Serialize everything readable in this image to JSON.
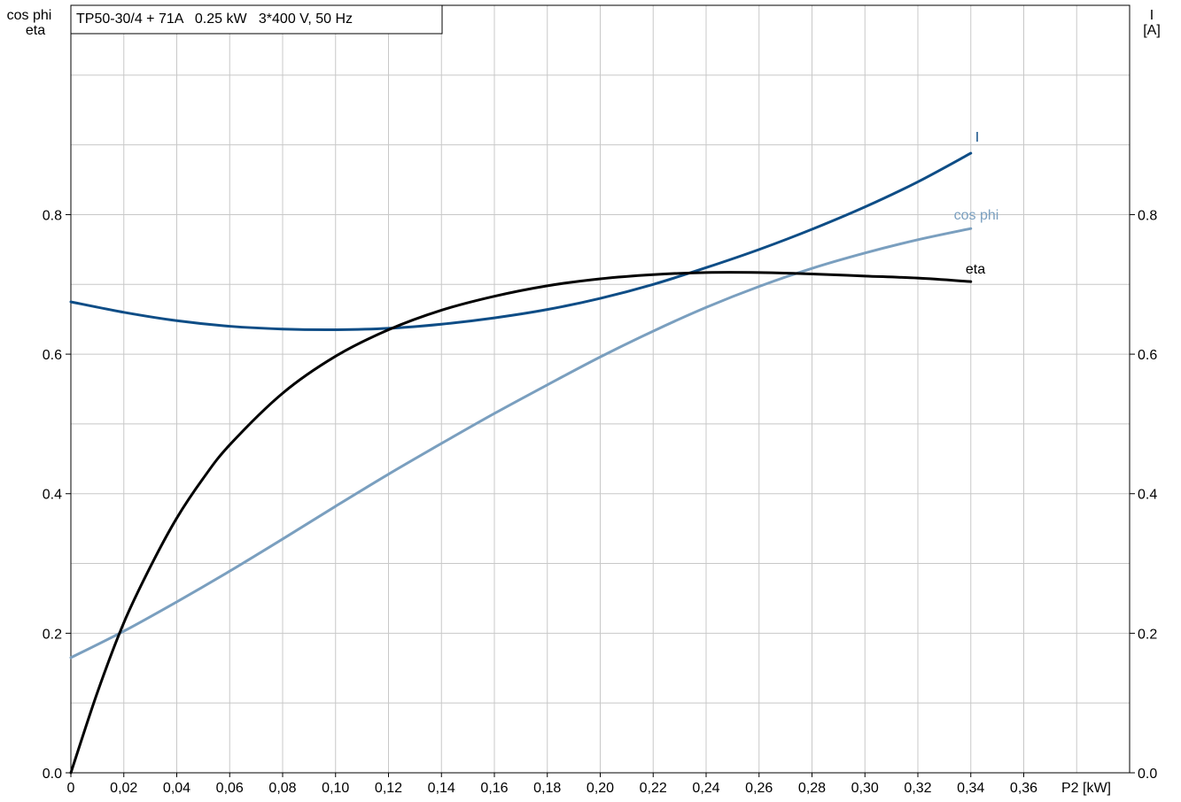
{
  "title_box": "TP50-30/4 + 71A   0.25 kW   3*400 V, 50 Hz",
  "y_left_label": [
    "cos phi",
    "eta"
  ],
  "y_right_label": [
    "I",
    "[A]"
  ],
  "x_unit_label": "P2 [kW]",
  "chart_data": {
    "type": "line",
    "x_ticks": [
      "0",
      "0,02",
      "0,04",
      "0,06",
      "0,08",
      "0,10",
      "0,12",
      "0,14",
      "0,16",
      "0,18",
      "0,20",
      "0,22",
      "0,24",
      "0,26",
      "0,28",
      "0,30",
      "0,32",
      "0,34",
      "0,36"
    ],
    "xlim": [
      0,
      0.4
    ],
    "y_left": {
      "ticks": [
        "0.0",
        "0.2",
        "0.4",
        "0.6",
        "0.8"
      ],
      "ylim": [
        0,
        1.1
      ]
    },
    "y_right": {
      "ticks": [
        "0.0",
        "0.2",
        "0.4",
        "0.6",
        "0.8"
      ],
      "ylim": [
        0,
        1.1
      ]
    },
    "grid": true,
    "series": [
      {
        "name": "I",
        "axis": "right",
        "color": "#0e4d86",
        "x": [
          0,
          0.02,
          0.04,
          0.06,
          0.08,
          0.1,
          0.12,
          0.14,
          0.16,
          0.18,
          0.2,
          0.22,
          0.24,
          0.26,
          0.28,
          0.3,
          0.32,
          0.34
        ],
        "y": [
          0.675,
          0.66,
          0.648,
          0.64,
          0.636,
          0.635,
          0.637,
          0.643,
          0.652,
          0.664,
          0.68,
          0.7,
          0.724,
          0.75,
          0.779,
          0.811,
          0.847,
          0.888
        ]
      },
      {
        "name": "cos phi",
        "axis": "left",
        "color": "#7a9fbf",
        "x": [
          0,
          0.02,
          0.04,
          0.06,
          0.08,
          0.1,
          0.12,
          0.14,
          0.16,
          0.18,
          0.2,
          0.22,
          0.24,
          0.26,
          0.28,
          0.3,
          0.32,
          0.34
        ],
        "y": [
          0.165,
          0.203,
          0.245,
          0.289,
          0.335,
          0.382,
          0.428,
          0.472,
          0.515,
          0.556,
          0.596,
          0.633,
          0.667,
          0.697,
          0.723,
          0.745,
          0.764,
          0.78
        ]
      },
      {
        "name": "eta",
        "axis": "left",
        "color": "#000000",
        "x": [
          0,
          0.01,
          0.02,
          0.03,
          0.04,
          0.05,
          0.06,
          0.08,
          0.1,
          0.12,
          0.14,
          0.16,
          0.18,
          0.2,
          0.22,
          0.24,
          0.26,
          0.28,
          0.3,
          0.32,
          0.34
        ],
        "y": [
          0.0,
          0.115,
          0.215,
          0.295,
          0.365,
          0.422,
          0.47,
          0.544,
          0.597,
          0.635,
          0.663,
          0.683,
          0.698,
          0.708,
          0.714,
          0.717,
          0.717,
          0.715,
          0.712,
          0.709,
          0.704
        ]
      }
    ]
  }
}
